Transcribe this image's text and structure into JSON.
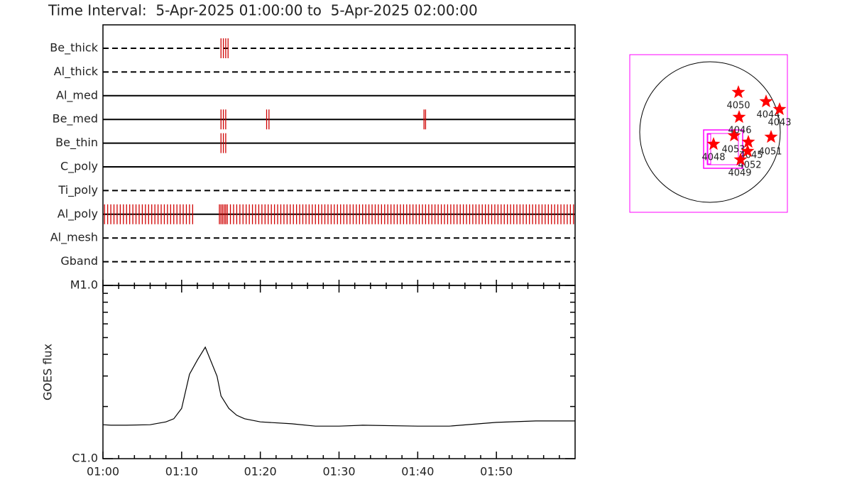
{
  "chart_data": [
    {
      "type": "timeline",
      "title": "Time Interval:  5-Apr-2025 01:00:00 to  5-Apr-2025 02:00:00",
      "color": "#d00000",
      "rows": [
        {
          "name": "Be_thick",
          "line": "dashed",
          "times": [
            15.0,
            15.3,
            15.6,
            15.9
          ]
        },
        {
          "name": "Al_thick",
          "line": "dashed",
          "times": []
        },
        {
          "name": "Al_med",
          "line": "solid",
          "times": []
        },
        {
          "name": "Be_med",
          "line": "solid",
          "times": [
            15.0,
            15.3,
            15.6,
            20.8,
            21.1,
            40.8,
            41.0
          ]
        },
        {
          "name": "Be_thin",
          "line": "solid",
          "times": [
            15.0,
            15.3,
            15.6
          ]
        },
        {
          "name": "C_poly",
          "line": "solid",
          "times": []
        },
        {
          "name": "Ti_poly",
          "line": "dashed",
          "times": []
        },
        {
          "name": "Al_poly",
          "line": "solid",
          "times": [
            0.2,
            0.6,
            1.0,
            1.4,
            1.8,
            2.2,
            2.6,
            3.0,
            3.4,
            3.8,
            4.2,
            4.6,
            5.0,
            5.4,
            5.8,
            6.2,
            6.6,
            7.0,
            7.4,
            7.8,
            8.2,
            8.6,
            9.0,
            9.4,
            9.8,
            10.2,
            10.6,
            11.0,
            11.4,
            14.8,
            15.0,
            15.2,
            15.4,
            15.6,
            15.8,
            16.2,
            16.6,
            17.0,
            17.4,
            17.8,
            18.2,
            18.6,
            19.0,
            19.4,
            19.8,
            20.2,
            20.6,
            21.0,
            21.4,
            21.8,
            22.2,
            22.6,
            23.0,
            23.4,
            23.8,
            24.2,
            24.6,
            25.0,
            25.4,
            25.8,
            26.2,
            26.6,
            27.0,
            27.4,
            27.8,
            28.2,
            28.6,
            29.0,
            29.4,
            29.8,
            30.2,
            30.6,
            31.0,
            31.4,
            31.8,
            32.2,
            32.6,
            33.0,
            33.4,
            33.8,
            34.2,
            34.6,
            35.0,
            35.4,
            35.8,
            36.2,
            36.6,
            37.0,
            37.4,
            37.8,
            38.2,
            38.6,
            39.0,
            39.4,
            39.8,
            40.2,
            40.6,
            41.0,
            41.4,
            41.8,
            42.2,
            42.6,
            43.0,
            43.4,
            43.8,
            44.2,
            44.6,
            45.0,
            45.4,
            45.8,
            46.2,
            46.6,
            47.0,
            47.4,
            47.8,
            48.2,
            48.6,
            49.0,
            49.4,
            49.8,
            50.2,
            50.6,
            51.0,
            51.4,
            51.8,
            52.2,
            52.6,
            53.0,
            53.4,
            53.8,
            54.2,
            54.6,
            55.0,
            55.4,
            55.8,
            56.2,
            56.6,
            57.0,
            57.4,
            57.8,
            58.2,
            58.6,
            59.0,
            59.4,
            59.8
          ]
        },
        {
          "name": "Al_mesh",
          "line": "dashed",
          "times": []
        },
        {
          "name": "Gband",
          "line": "dashed",
          "times": []
        }
      ],
      "xlim": [
        0,
        60
      ],
      "xticks": [
        0,
        10,
        20,
        30,
        40,
        50
      ],
      "xminor_ticks": [
        2,
        4,
        6,
        8,
        12,
        14,
        16,
        18,
        22,
        24,
        26,
        28,
        32,
        34,
        36,
        38,
        42,
        44,
        46,
        48,
        52,
        54,
        56,
        58
      ]
    },
    {
      "type": "line",
      "ylabel": "GOES flux",
      "color": "#000000",
      "log_scale": true,
      "x": [
        0,
        1,
        3,
        6,
        8,
        9,
        10,
        11,
        12,
        13,
        14.5,
        15,
        16,
        17,
        18,
        20,
        24,
        27,
        30,
        33,
        40,
        44,
        50,
        55,
        60
      ],
      "values": [
        1.57e-06,
        1.56e-06,
        1.56e-06,
        1.57e-06,
        1.63e-06,
        1.7e-06,
        1.95e-06,
        3.07e-06,
        3.71e-06,
        4.4e-06,
        2.99e-06,
        2.3e-06,
        1.95e-06,
        1.78e-06,
        1.7e-06,
        1.63e-06,
        1.59e-06,
        1.54e-06,
        1.54e-06,
        1.56e-06,
        1.54e-06,
        1.54e-06,
        1.62e-06,
        1.65e-06,
        1.65e-06
      ],
      "ylim": [
        1e-06,
        1e-05
      ],
      "yticks": [
        {
          "value": 1e-06,
          "label": "C1.0"
        },
        {
          "value": 1e-05,
          "label": "M1.0"
        }
      ],
      "yminor_ticks": [
        2e-06,
        3e-06,
        4e-06,
        5e-06,
        6e-06,
        7e-06,
        8e-06,
        9e-06
      ],
      "xlim": [
        0,
        60
      ],
      "xticks": [
        {
          "value": 0,
          "label": "01:00"
        },
        {
          "value": 10,
          "label": "01:10"
        },
        {
          "value": 20,
          "label": "01:20"
        },
        {
          "value": 30,
          "label": "01:30"
        },
        {
          "value": 40,
          "label": "01:40"
        },
        {
          "value": 50,
          "label": "01:50"
        }
      ],
      "xminor_ticks": [
        2,
        4,
        6,
        8,
        12,
        14,
        16,
        18,
        22,
        24,
        26,
        28,
        32,
        34,
        36,
        38,
        42,
        44,
        46,
        48,
        52,
        54,
        56,
        58
      ]
    },
    {
      "type": "map",
      "color": "#ff0000",
      "regions": [
        {
          "label": "4050"
        },
        {
          "label": "4044"
        },
        {
          "label": "4043"
        },
        {
          "label": "4046"
        },
        {
          "label": "4051"
        },
        {
          "label": "4053"
        },
        {
          "label": "4045"
        },
        {
          "label": "4048"
        },
        {
          "label": "4052"
        },
        {
          "label": "4049"
        }
      ]
    }
  ]
}
